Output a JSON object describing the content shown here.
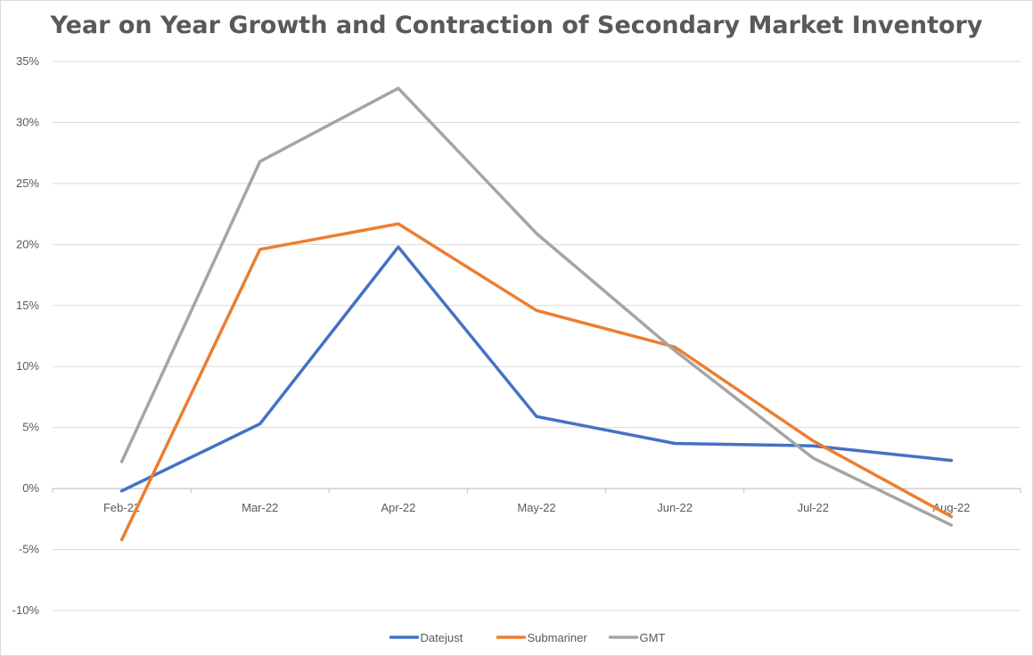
{
  "chart_data": {
    "type": "line",
    "title": "Year on Year Growth and Contraction of Secondary Market Inventory",
    "categories": [
      "Feb-22",
      "Mar-22",
      "Apr-22",
      "May-22",
      "Jun-22",
      "Jul-22",
      "Aug-22"
    ],
    "ylim": [
      -0.1,
      0.35
    ],
    "yticks": [
      -0.1,
      -0.05,
      0,
      0.05,
      0.1,
      0.15,
      0.2,
      0.25,
      0.3,
      0.35
    ],
    "ytick_labels": [
      "-10%",
      "-5%",
      "0%",
      "5%",
      "10%",
      "15%",
      "20%",
      "25%",
      "30%",
      "35%"
    ],
    "y_format": "percent",
    "grid": true,
    "legend_position": "bottom",
    "series": [
      {
        "name": "Datejust",
        "color": "#4472C4",
        "values": [
          -0.002,
          0.053,
          0.198,
          0.059,
          0.037,
          0.035,
          0.023
        ]
      },
      {
        "name": "Submariner",
        "color": "#ED7D31",
        "values": [
          -0.042,
          0.196,
          0.217,
          0.146,
          0.116,
          0.039,
          -0.023
        ]
      },
      {
        "name": "GMT",
        "color": "#A5A5A5",
        "values": [
          0.022,
          0.268,
          0.328,
          0.209,
          0.113,
          0.025,
          -0.03
        ]
      }
    ]
  }
}
